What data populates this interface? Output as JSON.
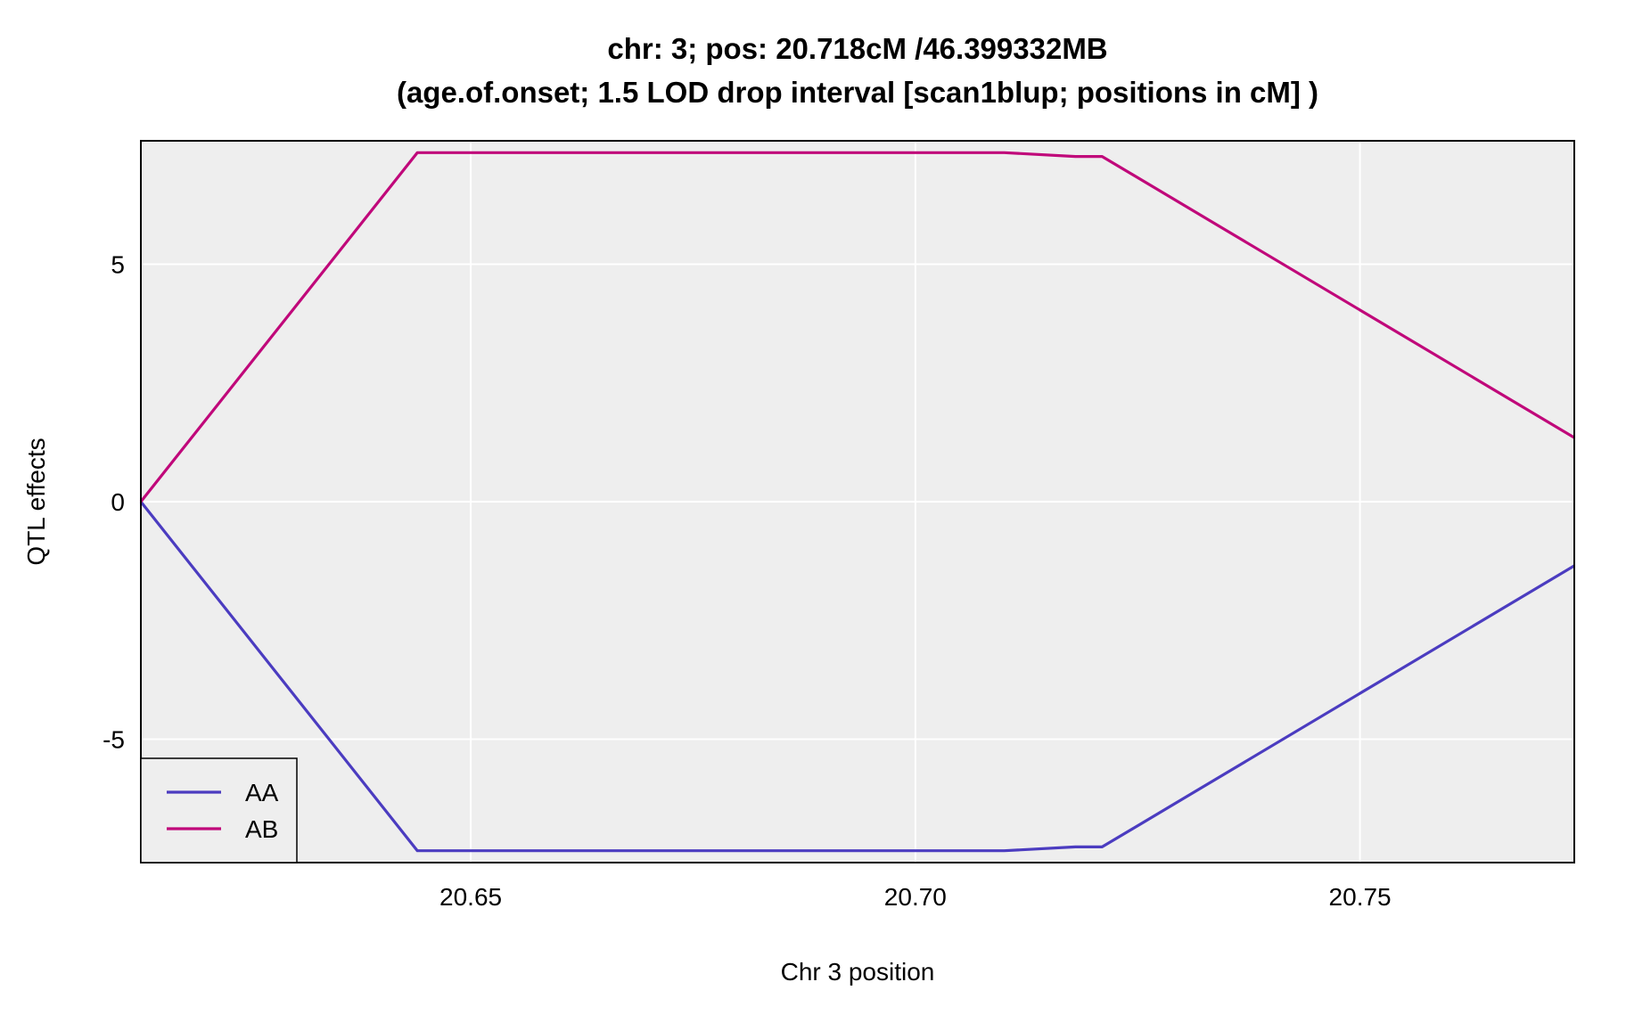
{
  "chart_data": {
    "type": "line",
    "title": "chr: 3; pos: 20.718cM /46.399332MB",
    "subtitle": "(age.of.onset; 1.5 LOD drop interval [scan1blup; positions in cM] )",
    "xlabel": "Chr 3 position",
    "ylabel": "QTL effects",
    "xlim": [
      20.6129,
      20.7741
    ],
    "ylim": [
      -7.6,
      7.6
    ],
    "xticks": [
      20.65,
      20.7,
      20.75
    ],
    "xtick_labels": [
      "20.65",
      "20.70",
      "20.75"
    ],
    "yticks": [
      -5,
      0,
      5
    ],
    "ytick_labels": [
      "-5",
      "0",
      "5"
    ],
    "grid": true,
    "legend_position": "bottom-left",
    "colors": {
      "panel_bg": "#eeeeee",
      "grid": "#ffffff",
      "AA": "#4b3cc0",
      "AB": "#c0087a"
    },
    "series": [
      {
        "name": "AA",
        "x": [
          20.6129,
          20.644,
          20.71,
          20.718,
          20.721,
          20.7741
        ],
        "y": [
          0.0,
          -7.35,
          -7.35,
          -7.27,
          -7.27,
          -1.35
        ]
      },
      {
        "name": "AB",
        "x": [
          20.6129,
          20.644,
          20.71,
          20.718,
          20.721,
          20.7741
        ],
        "y": [
          0.0,
          7.35,
          7.35,
          7.27,
          7.27,
          1.35
        ]
      }
    ]
  }
}
